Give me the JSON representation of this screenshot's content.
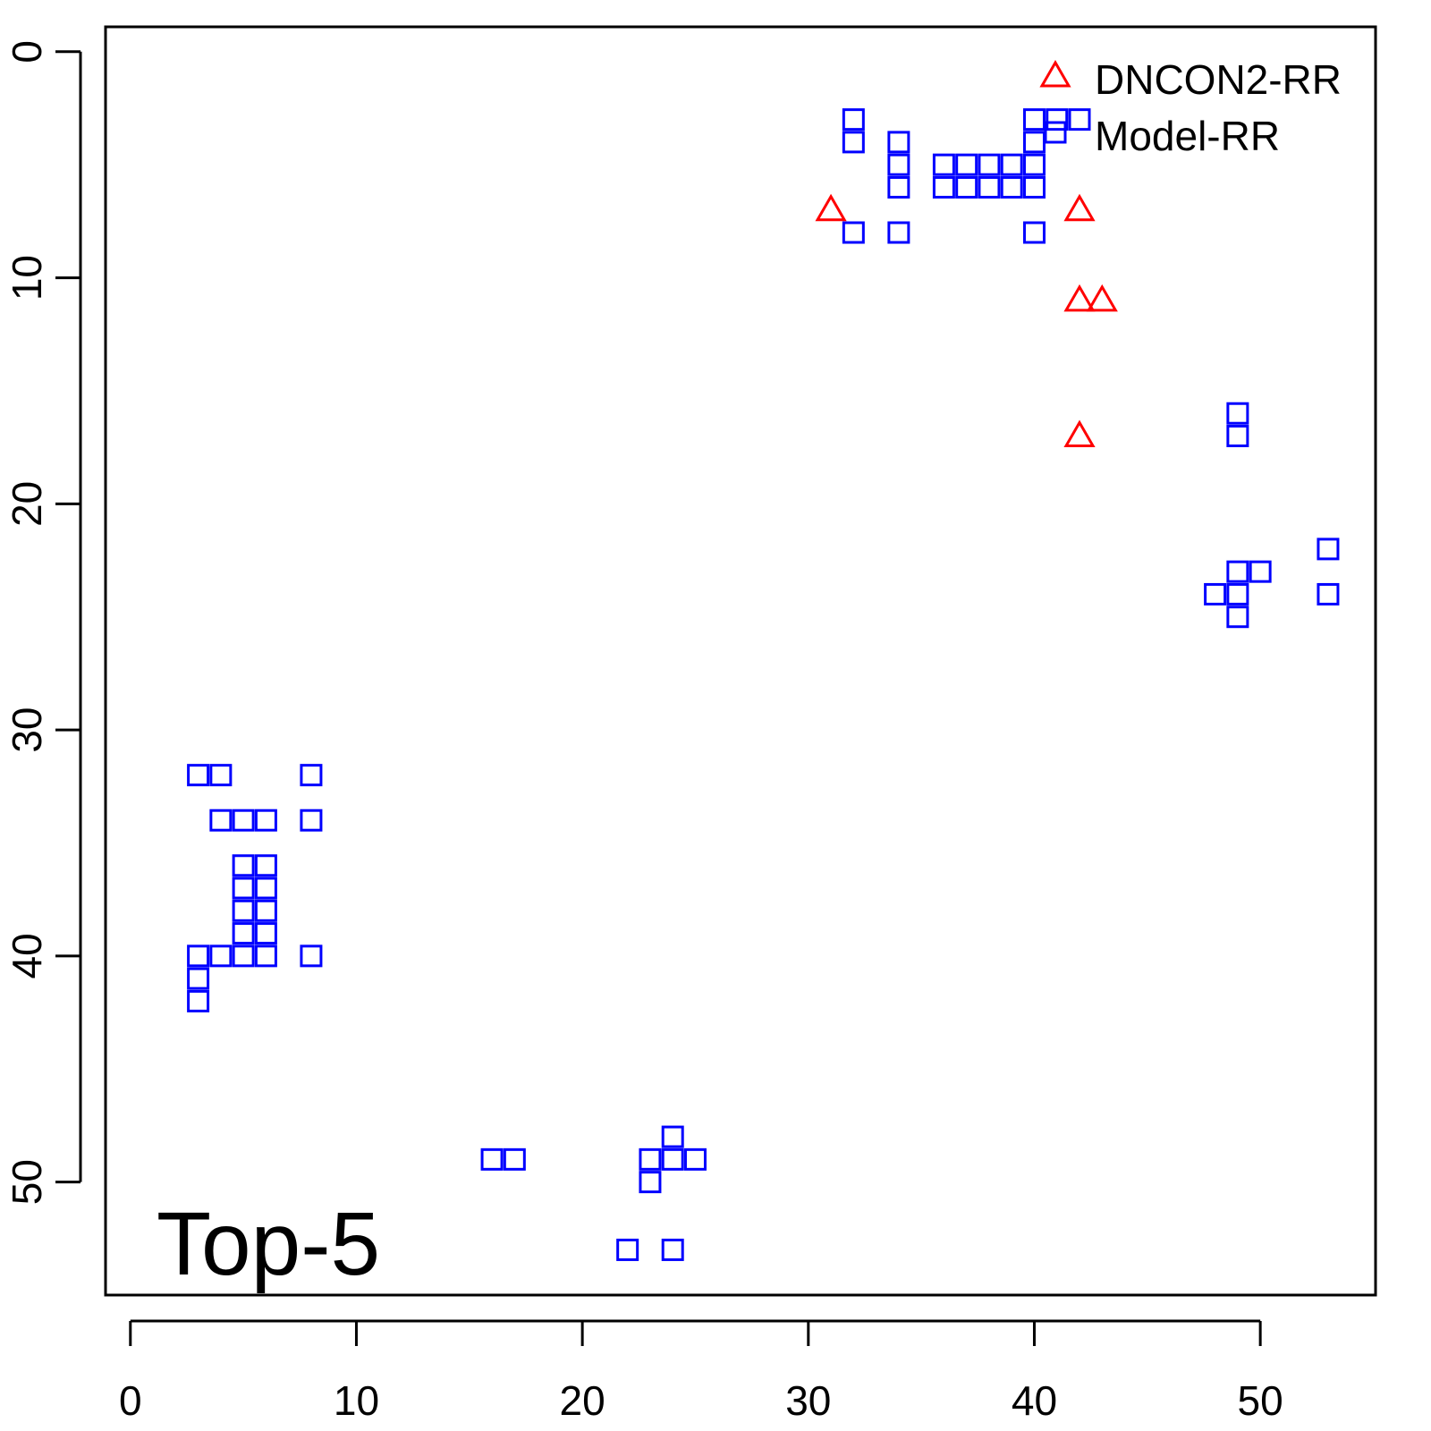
{
  "chart_data": {
    "type": "scatter",
    "annotation": "Top-5",
    "xlim": [
      -1.1,
      55.1
    ],
    "ylim": [
      55,
      -1.1
    ],
    "xticks": [
      0,
      10,
      20,
      30,
      40,
      50
    ],
    "yticks": [
      0,
      10,
      20,
      30,
      40,
      50
    ],
    "legend": "top-right",
    "series": [
      {
        "name": "DNCON2-RR",
        "color": "#ff0000",
        "marker": "triangle",
        "x": [
          31,
          42,
          42,
          43,
          42
        ],
        "y": [
          7,
          7,
          11,
          11,
          17
        ]
      },
      {
        "name": "Model-RR",
        "color": "#0000ff",
        "marker": "square",
        "x": [
          32,
          32,
          32,
          34,
          34,
          34,
          34,
          36,
          36,
          37,
          37,
          38,
          38,
          39,
          39,
          40,
          40,
          40,
          40,
          40,
          41,
          42,
          49,
          49,
          49,
          49,
          49,
          48,
          50,
          53,
          53,
          3,
          3,
          3,
          3,
          4,
          4,
          4,
          5,
          5,
          5,
          5,
          5,
          5,
          6,
          6,
          6,
          6,
          6,
          6,
          8,
          8,
          8,
          16,
          17,
          23,
          23,
          24,
          24,
          25,
          22,
          24
        ],
        "y": [
          3,
          4,
          8,
          4,
          5,
          6,
          8,
          5,
          6,
          5,
          6,
          5,
          6,
          5,
          6,
          3,
          4,
          5,
          6,
          8,
          3,
          3,
          16,
          17,
          23,
          24,
          25,
          24,
          23,
          22,
          24,
          32,
          40,
          41,
          42,
          32,
          34,
          40,
          34,
          36,
          37,
          38,
          39,
          40,
          34,
          36,
          37,
          38,
          39,
          40,
          32,
          34,
          40,
          49,
          49,
          49,
          50,
          48,
          49,
          49,
          53,
          53
        ]
      }
    ]
  }
}
